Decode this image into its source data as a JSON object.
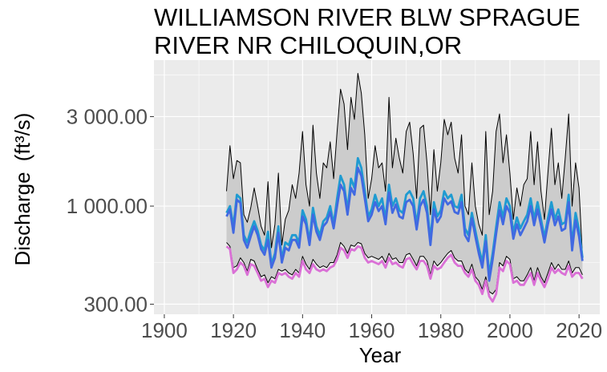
{
  "chart_data": {
    "type": "line",
    "title_lines": [
      "WILLIAMSON RIVER BLW SPRAGUE",
      "RIVER NR CHILOQUIN,OR"
    ],
    "xlabel": "Year",
    "ylabel": "Discharge",
    "ylabel_unit": "(ft³/s)",
    "y_scale": "log",
    "xlim": [
      1897,
      2026
    ],
    "ylim": [
      265,
      6000
    ],
    "x_ticks": [
      1900,
      1920,
      1940,
      1960,
      1980,
      2000,
      2020
    ],
    "y_ticks": [
      300,
      1000,
      3000
    ],
    "y_tick_labels": [
      "300.00",
      "1 000.00",
      "3 000.00"
    ],
    "grid": true,
    "band_color": "#cccccc",
    "colors": {
      "panel": "#ebebeb",
      "grid": "#ffffff",
      "band_line": "#000000"
    },
    "x": [
      1918,
      1919,
      1920,
      1921,
      1922,
      1923,
      1924,
      1925,
      1926,
      1927,
      1928,
      1929,
      1930,
      1931,
      1932,
      1933,
      1934,
      1935,
      1936,
      1937,
      1938,
      1939,
      1940,
      1941,
      1942,
      1943,
      1944,
      1945,
      1946,
      1947,
      1948,
      1949,
      1950,
      1951,
      1952,
      1953,
      1954,
      1955,
      1956,
      1957,
      1958,
      1959,
      1960,
      1961,
      1962,
      1963,
      1964,
      1965,
      1966,
      1967,
      1968,
      1969,
      1970,
      1971,
      1972,
      1973,
      1974,
      1975,
      1976,
      1977,
      1978,
      1979,
      1980,
      1981,
      1982,
      1983,
      1984,
      1985,
      1986,
      1987,
      1988,
      1989,
      1990,
      1991,
      1992,
      1993,
      1994,
      1995,
      1996,
      1997,
      1998,
      1999,
      2000,
      2001,
      2002,
      2003,
      2004,
      2005,
      2006,
      2007,
      2008,
      2009,
      2010,
      2011,
      2012,
      2013,
      2014,
      2015,
      2016,
      2017,
      2018,
      2019,
      2020,
      2021
    ],
    "series": [
      {
        "color": "#000000",
        "style": "band-upper",
        "values": [
          1200,
          2100,
          1400,
          1750,
          1700,
          900,
          820,
          980,
          1250,
          1000,
          780,
          700,
          1350,
          600,
          800,
          1500,
          620,
          850,
          950,
          1300,
          1100,
          1500,
          2500,
          1300,
          1000,
          2700,
          1500,
          1100,
          1700,
          1600,
          2200,
          1400,
          2500,
          4200,
          3500,
          2000,
          3800,
          2900,
          5100,
          4000,
          2400,
          1100,
          1400,
          2100,
          1600,
          1700,
          1200,
          3800,
          1600,
          2300,
          1800,
          1500,
          2500,
          2800,
          1900,
          1100,
          2600,
          2700,
          1700,
          900,
          2000,
          1200,
          1700,
          2900,
          2400,
          2800,
          1800,
          1500,
          2400,
          1000,
          900,
          1700,
          1000,
          800,
          700,
          2500,
          900,
          1200,
          2500,
          3100,
          1700,
          2400,
          1500,
          850,
          1250,
          1000,
          1300,
          1400,
          2500,
          1300,
          2200,
          1200,
          850,
          1500,
          2600,
          1300,
          1700,
          1100,
          1800,
          3100,
          1000,
          1700,
          1250,
          540
        ]
      },
      {
        "color": "#000000",
        "style": "band-lower",
        "values": [
          640,
          610,
          470,
          480,
          530,
          500,
          450,
          520,
          510,
          460,
          420,
          430,
          390,
          420,
          410,
          460,
          450,
          460,
          440,
          430,
          460,
          440,
          540,
          490,
          460,
          520,
          490,
          470,
          480,
          470,
          500,
          500,
          550,
          640,
          610,
          560,
          620,
          610,
          640,
          630,
          560,
          530,
          540,
          530,
          520,
          540,
          500,
          560,
          520,
          530,
          500,
          500,
          550,
          560,
          520,
          480,
          540,
          540,
          510,
          430,
          510,
          480,
          500,
          530,
          560,
          580,
          530,
          510,
          510,
          460,
          440,
          490,
          420,
          400,
          360,
          420,
          350,
          340,
          360,
          500,
          480,
          540,
          520,
          410,
          420,
          400,
          400,
          430,
          470,
          400,
          470,
          420,
          390,
          440,
          500,
          460,
          490,
          460,
          460,
          510,
          440,
          470,
          470,
          430
        ]
      },
      {
        "color": "#1f9bd1",
        "style": "line",
        "values": [
          920,
          1000,
          780,
          1150,
          1100,
          700,
          640,
          740,
          830,
          740,
          620,
          580,
          730,
          490,
          560,
          780,
          520,
          640,
          620,
          700,
          700,
          640,
          950,
          850,
          650,
          980,
          780,
          700,
          830,
          870,
          1000,
          800,
          1100,
          1450,
          1300,
          950,
          1400,
          1250,
          1800,
          1600,
          1200,
          880,
          960,
          1150,
          1000,
          1100,
          850,
          1300,
          1000,
          1100,
          950,
          920,
          1150,
          1200,
          1100,
          800,
          1100,
          1200,
          1000,
          660,
          1050,
          880,
          950,
          1200,
          1100,
          1150,
          1000,
          980,
          1150,
          760,
          700,
          920,
          740,
          600,
          500,
          700,
          430,
          560,
          770,
          1050,
          870,
          1100,
          1000,
          720,
          870,
          760,
          830,
          900,
          1100,
          850,
          1050,
          850,
          680,
          860,
          1050,
          850,
          960,
          800,
          820,
          1150,
          620,
          920,
          750,
          530
        ]
      },
      {
        "color": "#4169e1",
        "style": "line",
        "values": [
          880,
          960,
          720,
          1080,
          1040,
          660,
          600,
          690,
          780,
          700,
          590,
          550,
          660,
          470,
          530,
          720,
          500,
          600,
          580,
          660,
          660,
          600,
          880,
          800,
          620,
          900,
          730,
          660,
          780,
          820,
          930,
          760,
          1000,
          1300,
          1200,
          900,
          1250,
          1150,
          1600,
          1450,
          1100,
          830,
          900,
          1050,
          940,
          1000,
          800,
          1180,
          920,
          1020,
          880,
          860,
          1050,
          1080,
          1000,
          750,
          1000,
          1080,
          920,
          620,
          960,
          820,
          880,
          1100,
          1020,
          1060,
          930,
          910,
          1050,
          700,
          650,
          860,
          690,
          560,
          470,
          650,
          400,
          520,
          710,
          950,
          800,
          1000,
          920,
          670,
          800,
          700,
          760,
          830,
          1000,
          790,
          960,
          790,
          640,
          800,
          960,
          790,
          880,
          740,
          760,
          1050,
          580,
          840,
          690,
          510
        ]
      },
      {
        "color": "#da70d6",
        "style": "line",
        "values": [
          610,
          590,
          440,
          460,
          500,
          480,
          430,
          490,
          480,
          440,
          400,
          410,
          370,
          400,
          390,
          440,
          430,
          440,
          420,
          410,
          440,
          420,
          510,
          460,
          440,
          490,
          460,
          450,
          460,
          450,
          470,
          480,
          520,
          600,
          580,
          530,
          590,
          580,
          610,
          600,
          530,
          500,
          510,
          500,
          490,
          510,
          470,
          530,
          490,
          500,
          480,
          470,
          520,
          530,
          490,
          460,
          510,
          510,
          480,
          410,
          480,
          460,
          470,
          500,
          530,
          550,
          500,
          480,
          480,
          440,
          420,
          460,
          400,
          380,
          340,
          400,
          330,
          310,
          340,
          470,
          450,
          510,
          490,
          390,
          400,
          380,
          380,
          410,
          440,
          380,
          440,
          400,
          370,
          410,
          470,
          440,
          460,
          440,
          430,
          480,
          420,
          440,
          440,
          410
        ]
      }
    ]
  }
}
